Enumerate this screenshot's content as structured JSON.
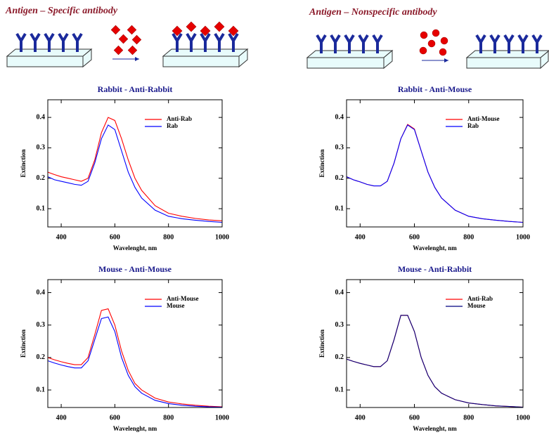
{
  "diagrams": [
    {
      "title": "Antigen – Specific antibody"
    },
    {
      "title": "Antigen – Nonspecific antibody"
    }
  ],
  "chart_data": [
    {
      "type": "line",
      "title": "Rabbit - Anti-Rabbit",
      "xlabel": "Wavelenght, nm",
      "ylabel": "Extinction",
      "x": [
        350,
        375,
        400,
        425,
        450,
        475,
        500,
        525,
        550,
        575,
        600,
        625,
        650,
        675,
        700,
        750,
        800,
        850,
        900,
        950,
        1000
      ],
      "series": [
        {
          "name": "Anti-Rab",
          "color": "#ff0000",
          "values": [
            0.22,
            0.212,
            0.205,
            0.2,
            0.195,
            0.19,
            0.2,
            0.26,
            0.35,
            0.4,
            0.39,
            0.33,
            0.26,
            0.2,
            0.16,
            0.11,
            0.085,
            0.075,
            0.068,
            0.063,
            0.06
          ]
        },
        {
          "name": "Rab",
          "color": "#0000ff",
          "values": [
            0.205,
            0.195,
            0.19,
            0.185,
            0.18,
            0.177,
            0.19,
            0.25,
            0.33,
            0.375,
            0.36,
            0.29,
            0.22,
            0.17,
            0.135,
            0.095,
            0.075,
            0.067,
            0.062,
            0.058,
            0.055
          ]
        }
      ],
      "xlim": [
        350,
        1000
      ],
      "xticks": [
        400,
        600,
        800,
        1000
      ],
      "ylim": [
        0.04,
        0.458
      ],
      "yticks": [
        0.1,
        0.2,
        0.3,
        0.4
      ],
      "legend": "upper right"
    },
    {
      "type": "line",
      "title": "Rabbit - Anti-Mouse",
      "xlabel": "Wavelenght, nm",
      "ylabel": "Extinction",
      "x": [
        350,
        375,
        400,
        425,
        450,
        475,
        500,
        525,
        550,
        575,
        600,
        625,
        650,
        675,
        700,
        750,
        800,
        850,
        900,
        950,
        1000
      ],
      "series": [
        {
          "name": "Anti-Mouse",
          "color": "#ff0000",
          "values": [
            0.205,
            0.195,
            0.188,
            0.18,
            0.175,
            0.175,
            0.19,
            0.25,
            0.33,
            0.377,
            0.362,
            0.29,
            0.22,
            0.17,
            0.135,
            0.095,
            0.075,
            0.067,
            0.062,
            0.058,
            0.055
          ]
        },
        {
          "name": "Rab",
          "color": "#0000ff",
          "values": [
            0.205,
            0.195,
            0.188,
            0.18,
            0.175,
            0.175,
            0.19,
            0.25,
            0.33,
            0.375,
            0.36,
            0.29,
            0.22,
            0.17,
            0.135,
            0.095,
            0.075,
            0.067,
            0.062,
            0.058,
            0.055
          ]
        }
      ],
      "xlim": [
        350,
        1000
      ],
      "xticks": [
        400,
        600,
        800,
        1000
      ],
      "ylim": [
        0.04,
        0.458
      ],
      "yticks": [
        0.1,
        0.2,
        0.3,
        0.4
      ],
      "legend": "upper right"
    },
    {
      "type": "line",
      "title": "Mouse - Anti-Mouse",
      "xlabel": "Wavelenght, nm",
      "ylabel": "Extinction",
      "x": [
        350,
        375,
        400,
        425,
        450,
        475,
        500,
        525,
        550,
        575,
        600,
        625,
        650,
        675,
        700,
        750,
        800,
        850,
        900,
        950,
        1000
      ],
      "series": [
        {
          "name": "Anti-Mouse",
          "color": "#ff0000",
          "values": [
            0.2,
            0.193,
            0.187,
            0.182,
            0.178,
            0.178,
            0.2,
            0.27,
            0.345,
            0.35,
            0.3,
            0.22,
            0.16,
            0.12,
            0.1,
            0.075,
            0.063,
            0.057,
            0.053,
            0.05,
            0.048
          ]
        },
        {
          "name": "Mouse",
          "color": "#0000ff",
          "values": [
            0.19,
            0.183,
            0.177,
            0.172,
            0.168,
            0.168,
            0.19,
            0.255,
            0.32,
            0.325,
            0.28,
            0.2,
            0.145,
            0.11,
            0.09,
            0.068,
            0.058,
            0.053,
            0.05,
            0.048,
            0.047
          ]
        }
      ],
      "xlim": [
        350,
        1000
      ],
      "xticks": [
        400,
        600,
        800,
        1000
      ],
      "ylim": [
        0.046,
        0.44
      ],
      "yticks": [
        0.1,
        0.2,
        0.3,
        0.4
      ],
      "legend": "upper right"
    },
    {
      "type": "line",
      "title": "Mouse - Anti-Rabbit",
      "xlabel": "Wavelenght, nm",
      "ylabel": "Extinction",
      "x": [
        350,
        375,
        400,
        425,
        450,
        475,
        500,
        525,
        550,
        575,
        600,
        625,
        650,
        675,
        700,
        750,
        800,
        850,
        900,
        950,
        1000
      ],
      "series": [
        {
          "name": "Anti-Rab",
          "color": "#ff0000",
          "values": [
            0.195,
            0.188,
            0.182,
            0.177,
            0.172,
            0.172,
            0.19,
            0.255,
            0.33,
            0.33,
            0.28,
            0.2,
            0.145,
            0.11,
            0.09,
            0.07,
            0.06,
            0.055,
            0.051,
            0.049,
            0.047
          ]
        },
        {
          "name": "Mouse",
          "color": "#000080",
          "values": [
            0.195,
            0.188,
            0.182,
            0.177,
            0.172,
            0.172,
            0.19,
            0.255,
            0.33,
            0.33,
            0.28,
            0.2,
            0.145,
            0.11,
            0.09,
            0.07,
            0.06,
            0.055,
            0.051,
            0.049,
            0.047
          ]
        }
      ],
      "xlim": [
        350,
        1000
      ],
      "xticks": [
        400,
        600,
        800,
        1000
      ],
      "ylim": [
        0.046,
        0.44
      ],
      "yticks": [
        0.1,
        0.2,
        0.3,
        0.4
      ],
      "legend": "upper right"
    }
  ]
}
